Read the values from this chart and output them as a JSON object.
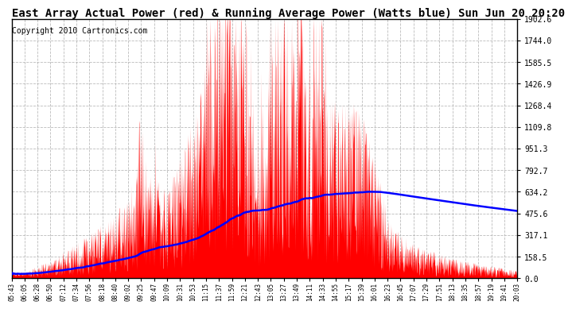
{
  "title": "East Array Actual Power (red) & Running Average Power (Watts blue) Sun Jun 20 20:20",
  "copyright": "Copyright 2010 Cartronics.com",
  "ymax": 1902.6,
  "yticks": [
    0.0,
    158.5,
    317.1,
    475.6,
    634.2,
    792.7,
    951.3,
    1109.8,
    1268.4,
    1426.9,
    1585.5,
    1744.0,
    1902.6
  ],
  "xtick_labels": [
    "05:43",
    "06:05",
    "06:28",
    "06:50",
    "07:12",
    "07:34",
    "07:56",
    "08:18",
    "08:40",
    "09:02",
    "09:25",
    "09:47",
    "10:09",
    "10:31",
    "10:53",
    "11:15",
    "11:37",
    "11:59",
    "12:21",
    "12:43",
    "13:05",
    "13:27",
    "13:49",
    "14:11",
    "14:33",
    "14:55",
    "15:17",
    "15:39",
    "16:01",
    "16:23",
    "16:45",
    "17:07",
    "17:29",
    "17:51",
    "18:13",
    "18:35",
    "18:57",
    "19:19",
    "19:41",
    "20:03"
  ],
  "actual_color": "#FF0000",
  "average_color": "#0000FF",
  "bg_color": "#FFFFFF",
  "grid_color": "#AAAAAA",
  "title_fontsize": 10,
  "copyright_fontsize": 7
}
